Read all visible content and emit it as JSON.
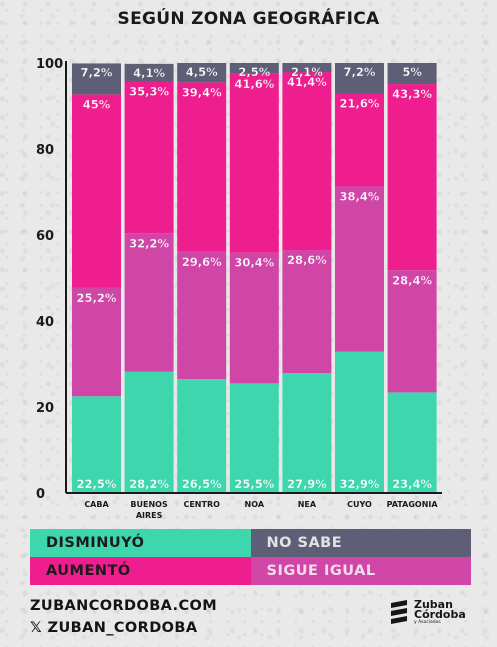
{
  "title": "SEGÚN ZONA GEOGRÁFICA",
  "chart_data": {
    "type": "bar",
    "stacked": true,
    "title": "SEGÚN ZONA GEOGRÁFICA",
    "categories": [
      [
        "CABA"
      ],
      [
        "BUENOS",
        "AIRES"
      ],
      [
        "CENTRO"
      ],
      [
        "NOA"
      ],
      [
        "NEA"
      ],
      [
        "CUYO"
      ],
      [
        "PATAGONIA"
      ]
    ],
    "yticks": [
      0,
      20,
      40,
      60,
      80,
      100
    ],
    "ylim": [
      0,
      100
    ],
    "series": [
      {
        "name": "DISMINUYÓ",
        "color": "#3ed6ad",
        "values": [
          22.5,
          28.2,
          26.5,
          25.5,
          27.9,
          32.9,
          23.4
        ],
        "labels": [
          "22,5%",
          "28,2%",
          "26,5%",
          "25,5%",
          "27,9%",
          "32,9%",
          "23,4%"
        ]
      },
      {
        "name": "SIGUE IGUAL",
        "color": "#cf46a7",
        "values": [
          25.2,
          32.2,
          29.6,
          30.4,
          28.6,
          38.4,
          28.4
        ],
        "labels": [
          "25,2%",
          "32,2%",
          "29,6%",
          "30,4%",
          "28,6%",
          "38,4%",
          "28,4%"
        ]
      },
      {
        "name": "AUMENTÓ",
        "color": "#ee1e8e",
        "values": [
          45,
          35.3,
          39.4,
          41.6,
          41.4,
          21.6,
          43.3
        ],
        "labels": [
          "45%",
          "35,3%",
          "39,4%",
          "41,6%",
          "41,4%",
          "21,6%",
          "43,3%"
        ]
      },
      {
        "name": "NO SABE",
        "color": "#5e5e76",
        "values": [
          7.2,
          4.1,
          4.5,
          2.5,
          2.1,
          7.2,
          5
        ],
        "labels": [
          "7,2%",
          "4,1%",
          "4,5%",
          "2,5%",
          "2,1%",
          "7,2%",
          "5%"
        ]
      }
    ]
  },
  "legend": {
    "disminuyo": "DISMINUYÓ",
    "no_sabe": "NO SABE",
    "aumento": "AUMENTÓ",
    "sigue_igual": "SIGUE IGUAL"
  },
  "footer": {
    "website": "ZUBANCORDOBA.COM",
    "social": "𝕏 ZUBAN_CORDOBA"
  },
  "logo": {
    "line1": "Zuban",
    "line2": "Córdoba",
    "line3": "y Asociados"
  }
}
